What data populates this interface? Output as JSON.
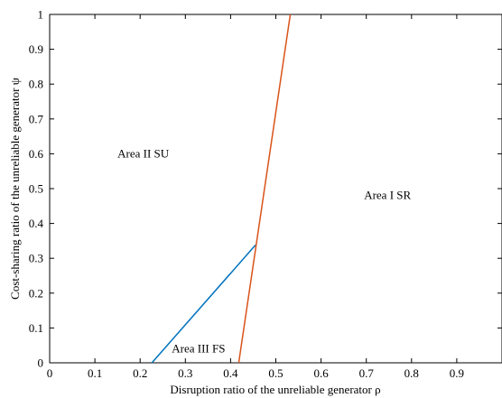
{
  "chart_data": {
    "type": "line",
    "xlabel": "Disruption ratio of the unreliable generator ρ",
    "ylabel": "Cost-sharing ratio of the unreliable generator ψ",
    "xlim": [
      0,
      1
    ],
    "ylim": [
      0,
      1
    ],
    "xticks": [
      "0",
      "0.1",
      "0.2",
      "0.3",
      "0.4",
      "0.5",
      "0.6",
      "0.7",
      "0.8",
      "0.9"
    ],
    "yticks": [
      "0",
      "0.1",
      "0.2",
      "0.3",
      "0.4",
      "0.5",
      "0.6",
      "0.7",
      "0.8",
      "0.9",
      "1"
    ],
    "grid": false,
    "series": [
      {
        "color": "#0072BD",
        "x": [
          0.226,
          0.455
        ],
        "y": [
          0,
          0.338
        ]
      },
      {
        "color": "#D95319",
        "x": [
          0.418,
          0.532
        ],
        "y": [
          0,
          1
        ]
      }
    ],
    "annotations": [
      {
        "text": "Area II SU",
        "x": 0.15,
        "y": 0.59
      },
      {
        "text": "Area I SR",
        "x": 0.695,
        "y": 0.47
      },
      {
        "text": "Area III FS",
        "x": 0.27,
        "y": 0.03
      }
    ]
  }
}
